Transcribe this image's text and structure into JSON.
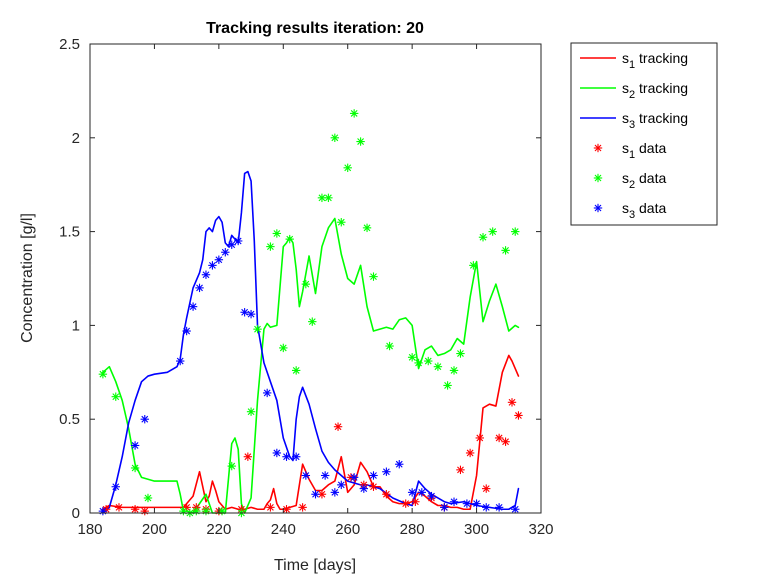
{
  "chart_data": {
    "type": "line",
    "title": "Tracking results iteration: 20",
    "xlabel": "Time [days]",
    "ylabel": "Concentration [g/l]",
    "xlim": [
      180,
      320
    ],
    "ylim": [
      0,
      2.5
    ],
    "xticks": [
      180,
      200,
      220,
      240,
      260,
      280,
      300,
      320
    ],
    "yticks": [
      0,
      0.5,
      1,
      1.5,
      2,
      2.5
    ],
    "grid": false,
    "legend_position": "outside-top-right",
    "series": [
      {
        "name": "s1 tracking",
        "legend_base": "s",
        "legend_sub": "1",
        "legend_suffix": " tracking",
        "kind": "line",
        "color": "#ff0000",
        "x": [
          184,
          186,
          190,
          195,
          200,
          205,
          209,
          211,
          212,
          214,
          216,
          217,
          218,
          219,
          220,
          222,
          224,
          226,
          228,
          230,
          232,
          234,
          235,
          236,
          237,
          238,
          239,
          240,
          242,
          244,
          246,
          248,
          250,
          252,
          254,
          256,
          258,
          260,
          262,
          264,
          266,
          268,
          270,
          272,
          274,
          276,
          278,
          280,
          282,
          284,
          286,
          288,
          290,
          292,
          294,
          296,
          298,
          300,
          302,
          304,
          306,
          308,
          310,
          311,
          312,
          313
        ],
        "y": [
          0.02,
          0.04,
          0.03,
          0.03,
          0.03,
          0.03,
          0.03,
          0.07,
          0.09,
          0.22,
          0.06,
          0.09,
          0.17,
          0.12,
          0.06,
          0.02,
          0.03,
          0.02,
          0.02,
          0.03,
          0.02,
          0.02,
          0.05,
          0.07,
          0.13,
          0.05,
          0.02,
          0.02,
          0.03,
          0.04,
          0.26,
          0.18,
          0.12,
          0.12,
          0.15,
          0.17,
          0.3,
          0.11,
          0.15,
          0.27,
          0.22,
          0.14,
          0.14,
          0.09,
          0.06,
          0.05,
          0.05,
          0.06,
          0.11,
          0.09,
          0.06,
          0.04,
          0.04,
          0.03,
          0.03,
          0.02,
          0.02,
          0.2,
          0.56,
          0.58,
          0.57,
          0.75,
          0.84,
          0.81,
          0.77,
          0.73
        ]
      },
      {
        "name": "s2 tracking",
        "legend_base": "s",
        "legend_sub": "2",
        "legend_suffix": " tracking",
        "kind": "line",
        "color": "#00ff00",
        "x": [
          184,
          186,
          188,
          190,
          192,
          194,
          196,
          200,
          205,
          207,
          208,
          209,
          210,
          212,
          214,
          216,
          218,
          220,
          222,
          224,
          225,
          226,
          227,
          228,
          230,
          232,
          234,
          235,
          236,
          238,
          240,
          241,
          242,
          243,
          244,
          245,
          246,
          248,
          250,
          252,
          254,
          256,
          258,
          260,
          262,
          264,
          266,
          268,
          270,
          272,
          274,
          276,
          278,
          280,
          282,
          284,
          286,
          288,
          290,
          292,
          294,
          296,
          298,
          300,
          302,
          304,
          306,
          308,
          310,
          312,
          313
        ],
        "y": [
          0.75,
          0.78,
          0.7,
          0.6,
          0.45,
          0.26,
          0.19,
          0.17,
          0.17,
          0.17,
          0.1,
          0.01,
          0.01,
          0.0,
          0.05,
          0.1,
          0.0,
          0.0,
          0.0,
          0.37,
          0.4,
          0.34,
          0.05,
          0.0,
          0.08,
          0.6,
          0.98,
          1.01,
          0.99,
          1.0,
          1.42,
          1.44,
          1.47,
          1.44,
          1.3,
          1.1,
          1.18,
          1.37,
          1.17,
          1.42,
          1.52,
          1.57,
          1.38,
          1.25,
          1.22,
          1.32,
          1.1,
          0.97,
          0.98,
          0.99,
          0.98,
          1.03,
          1.04,
          1.0,
          0.77,
          0.87,
          0.89,
          0.84,
          0.85,
          0.87,
          0.93,
          0.9,
          1.15,
          1.34,
          1.02,
          1.13,
          1.22,
          1.1,
          0.97,
          1.0,
          0.99
        ]
      },
      {
        "name": "s3 tracking",
        "legend_base": "s",
        "legend_sub": "3",
        "legend_suffix": " tracking",
        "kind": "line",
        "color": "#0000ff",
        "x": [
          184,
          186,
          188,
          190,
          192,
          194,
          196,
          198,
          200,
          204,
          207,
          208,
          209,
          210,
          211,
          212,
          214,
          215,
          216,
          217,
          218,
          219,
          220,
          221,
          222,
          223,
          224,
          225,
          226,
          227,
          228,
          229,
          230,
          231,
          232,
          234,
          236,
          238,
          240,
          242,
          243,
          244,
          245,
          246,
          248,
          250,
          252,
          254,
          256,
          258,
          260,
          262,
          264,
          266,
          270,
          274,
          278,
          280,
          282,
          284,
          286,
          288,
          290,
          292,
          296,
          300,
          304,
          308,
          310,
          312,
          313
        ],
        "y": [
          0.0,
          0.03,
          0.15,
          0.3,
          0.48,
          0.6,
          0.7,
          0.73,
          0.74,
          0.75,
          0.78,
          0.82,
          0.95,
          1.04,
          1.12,
          1.2,
          1.28,
          1.35,
          1.5,
          1.52,
          1.5,
          1.56,
          1.58,
          1.55,
          1.44,
          1.42,
          1.48,
          1.46,
          1.44,
          1.6,
          1.81,
          1.82,
          1.77,
          1.45,
          1.0,
          0.8,
          0.7,
          0.6,
          0.4,
          0.3,
          0.28,
          0.5,
          0.62,
          0.67,
          0.58,
          0.45,
          0.33,
          0.27,
          0.23,
          0.2,
          0.17,
          0.16,
          0.15,
          0.15,
          0.13,
          0.08,
          0.05,
          0.04,
          0.17,
          0.13,
          0.1,
          0.08,
          0.06,
          0.05,
          0.06,
          0.04,
          0.03,
          0.02,
          0.02,
          0.04,
          0.13
        ]
      },
      {
        "name": "s1 data",
        "legend_base": "s",
        "legend_sub": "1",
        "legend_suffix": " data",
        "kind": "marker",
        "color": "#ff0000",
        "x": [
          185,
          189,
          194,
          197,
          210,
          213,
          216,
          220,
          227,
          229,
          236,
          241,
          246,
          252,
          257,
          261,
          265,
          268,
          272,
          278,
          281,
          286,
          290,
          295,
          298,
          301,
          303,
          307,
          309,
          311,
          313
        ],
        "y": [
          0.02,
          0.03,
          0.02,
          0.01,
          0.03,
          0.03,
          0.02,
          0.01,
          0.02,
          0.3,
          0.03,
          0.02,
          0.03,
          0.1,
          0.46,
          0.19,
          0.15,
          0.14,
          0.1,
          0.05,
          0.06,
          0.08,
          0.03,
          0.23,
          0.32,
          0.4,
          0.13,
          0.4,
          0.38,
          0.59,
          0.52
        ]
      },
      {
        "name": "s2 data",
        "legend_base": "s",
        "legend_sub": "2",
        "legend_suffix": " data",
        "kind": "marker",
        "color": "#00ff00",
        "x": [
          184,
          188,
          194,
          198,
          209,
          211,
          213,
          216,
          221,
          224,
          227,
          230,
          232,
          236,
          238,
          240,
          242,
          244,
          247,
          249,
          252,
          254,
          256,
          258,
          260,
          262,
          264,
          266,
          268,
          273,
          280,
          282,
          285,
          288,
          291,
          293,
          295,
          299,
          302,
          305,
          309,
          312
        ],
        "y": [
          0.74,
          0.62,
          0.24,
          0.08,
          0.01,
          0.0,
          0.01,
          0.01,
          0.01,
          0.25,
          0.0,
          0.54,
          0.98,
          1.42,
          1.49,
          0.88,
          1.46,
          0.76,
          1.22,
          1.02,
          1.68,
          1.68,
          2.0,
          1.55,
          1.84,
          2.13,
          1.98,
          1.52,
          1.26,
          0.89,
          0.83,
          0.8,
          0.81,
          0.78,
          0.68,
          0.76,
          0.85,
          1.32,
          1.47,
          1.5,
          1.4,
          1.5
        ]
      },
      {
        "name": "s3 data",
        "legend_base": "s",
        "legend_sub": "3",
        "legend_suffix": " data",
        "kind": "marker",
        "color": "#0000ff",
        "x": [
          184,
          188,
          194,
          197,
          208,
          210,
          212,
          214,
          216,
          218,
          220,
          222,
          224,
          226,
          228,
          230,
          235,
          238,
          241,
          244,
          247,
          250,
          253,
          256,
          258,
          262,
          265,
          268,
          272,
          276,
          280,
          283,
          286,
          290,
          293,
          297,
          300,
          303,
          307,
          312
        ],
        "y": [
          0.01,
          0.14,
          0.36,
          0.5,
          0.81,
          0.97,
          1.1,
          1.2,
          1.27,
          1.32,
          1.35,
          1.39,
          1.43,
          1.45,
          1.07,
          1.06,
          0.64,
          0.32,
          0.3,
          0.3,
          0.2,
          0.1,
          0.2,
          0.11,
          0.15,
          0.19,
          0.13,
          0.2,
          0.22,
          0.26,
          0.11,
          0.11,
          0.09,
          0.03,
          0.06,
          0.05,
          0.05,
          0.03,
          0.03,
          0.02
        ]
      }
    ]
  }
}
